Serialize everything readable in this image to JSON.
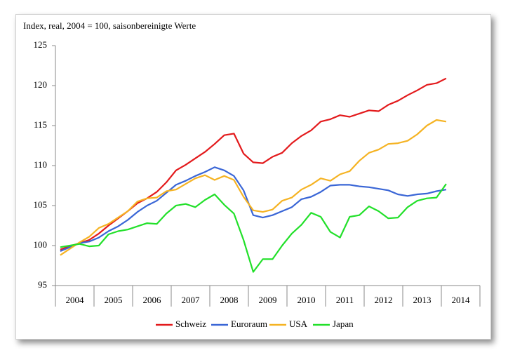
{
  "chart_data": {
    "type": "line",
    "title": "Index, real, 2004 = 100, saisonbereinigte Werte",
    "x_labels": [
      "2004",
      "2005",
      "2006",
      "2007",
      "2008",
      "2009",
      "2010",
      "2011",
      "2012",
      "2013",
      "2014"
    ],
    "ylim": [
      95,
      125
    ],
    "yticks": [
      95,
      100,
      105,
      110,
      115,
      120,
      125
    ],
    "legend": "bottom",
    "series": [
      {
        "name": "Schweiz",
        "color": "#e31a1c",
        "values": [
          99.5,
          99.9,
          100.3,
          100.7,
          101.5,
          102.5,
          103.4,
          104.3,
          105.3,
          105.9,
          106.7,
          107.9,
          109.4,
          110.1,
          110.9,
          111.7,
          112.7,
          113.8,
          114.0,
          111.5,
          110.4,
          110.3,
          111.1,
          111.6,
          112.8,
          113.7,
          114.4,
          115.5,
          115.8,
          116.3,
          116.1,
          116.5,
          116.9,
          116.8,
          117.6,
          118.1,
          118.8,
          119.4,
          120.1,
          120.3,
          120.9
        ]
      },
      {
        "name": "Euroraum",
        "color": "#3a66d6",
        "values": [
          99.3,
          99.8,
          100.3,
          100.5,
          101.0,
          101.8,
          102.4,
          103.2,
          104.2,
          105.0,
          105.6,
          106.6,
          107.6,
          108.1,
          108.7,
          109.2,
          109.8,
          109.4,
          108.7,
          106.9,
          103.8,
          103.5,
          103.8,
          104.3,
          104.8,
          105.8,
          106.1,
          106.7,
          107.5,
          107.6,
          107.6,
          107.4,
          107.3,
          107.1,
          106.9,
          106.4,
          106.2,
          106.4,
          106.5,
          106.8,
          107.0
        ]
      },
      {
        "name": "USA",
        "color": "#f5b323",
        "values": [
          98.8,
          99.6,
          100.4,
          101.1,
          102.2,
          102.7,
          103.5,
          104.3,
          105.5,
          105.9,
          106.0,
          106.8,
          107.0,
          107.7,
          108.4,
          108.8,
          108.2,
          108.7,
          108.2,
          106.1,
          104.4,
          104.2,
          104.5,
          105.6,
          106.0,
          107.0,
          107.6,
          108.4,
          108.1,
          108.9,
          109.3,
          110.6,
          111.6,
          112.0,
          112.7,
          112.8,
          113.1,
          113.9,
          115.0,
          115.7,
          115.5
        ]
      },
      {
        "name": "Japan",
        "color": "#22e02a",
        "values": [
          99.8,
          100.0,
          100.2,
          99.9,
          100.0,
          101.4,
          101.8,
          102.0,
          102.4,
          102.8,
          102.7,
          104.0,
          105.0,
          105.2,
          104.8,
          105.7,
          106.4,
          105.1,
          104.0,
          100.7,
          96.7,
          98.3,
          98.3,
          100.0,
          101.5,
          102.6,
          104.1,
          103.6,
          101.7,
          101.0,
          103.6,
          103.8,
          104.9,
          104.3,
          103.4,
          103.5,
          104.8,
          105.6,
          105.9,
          106.0,
          107.7
        ]
      }
    ]
  }
}
